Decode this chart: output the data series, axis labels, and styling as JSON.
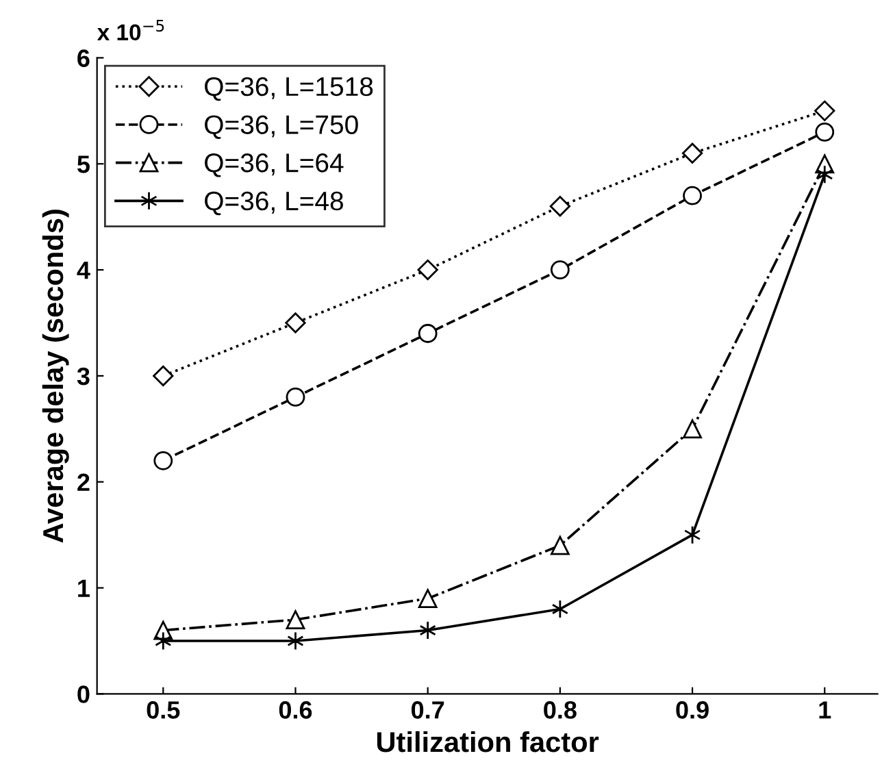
{
  "chart_data": {
    "type": "line",
    "xlabel": "Utilization factor",
    "ylabel": "Average delay (seconds)",
    "annotations": [
      "x 10$^{−5}$"
    ],
    "x": [
      0.5,
      0.6,
      0.7,
      0.8,
      0.9,
      1
    ],
    "xlim": [
      0.45,
      1.04
    ],
    "xticks": [
      0.5,
      0.6,
      0.7,
      0.8,
      0.9,
      {
        "value": 1,
        "label": "1"
      }
    ],
    "ylim": [
      0,
      6
    ],
    "yticks": [
      0,
      1,
      2,
      3,
      4,
      5,
      6
    ],
    "grid": false,
    "legend": "top left",
    "series": [
      {
        "name": "Q=36, L=1518",
        "color": "#000000",
        "marker": "diamond",
        "line_style": "dotted",
        "values": [
          3.0,
          3.5,
          4.0,
          4.6,
          5.1,
          5.5
        ]
      },
      {
        "name": "Q=36, L=750",
        "color": "#000000",
        "marker": "circle",
        "line_style": "dashed",
        "values": [
          2.2,
          2.8,
          3.4,
          4.0,
          4.7,
          5.3
        ]
      },
      {
        "name": "Q=36, L=64",
        "color": "#000000",
        "marker": "triangle",
        "line_style": "dashdot",
        "values": [
          0.6,
          0.7,
          0.9,
          1.4,
          2.5,
          5.0
        ]
      },
      {
        "name": "Q=36, L=48",
        "color": "#000000",
        "marker": "cross",
        "line_style": "solid",
        "values": [
          0.5,
          0.5,
          0.6,
          0.8,
          1.5,
          4.9
        ]
      }
    ]
  }
}
